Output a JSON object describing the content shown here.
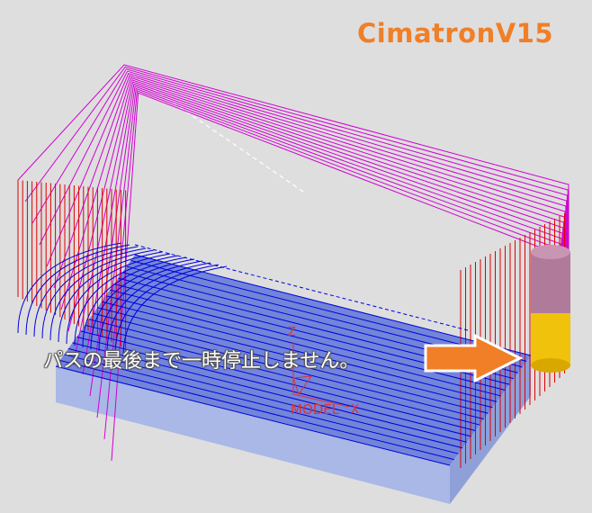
{
  "app": {
    "title": "CimatronV15"
  },
  "annotation": {
    "caption": "パスの最後まで一時停止しません。"
  },
  "axes": {
    "z": "Z",
    "x": "X",
    "model": "MODEL"
  },
  "colors": {
    "background": "#dedede",
    "title": "#f07f28",
    "rapid_path": "#d000d0",
    "feed_path": "#e00000",
    "cut_path": "#0000dd",
    "stock_top": "#6b7fd8",
    "stock_side": "#a9b8e6",
    "tool_shank": "#b07b9a",
    "tool_body": "#f0c20c",
    "arrow": "#f07f28"
  },
  "icons": {
    "arrow": "right-arrow-icon",
    "tool": "cutting-tool-icon",
    "axis": "axis-triad-icon"
  }
}
